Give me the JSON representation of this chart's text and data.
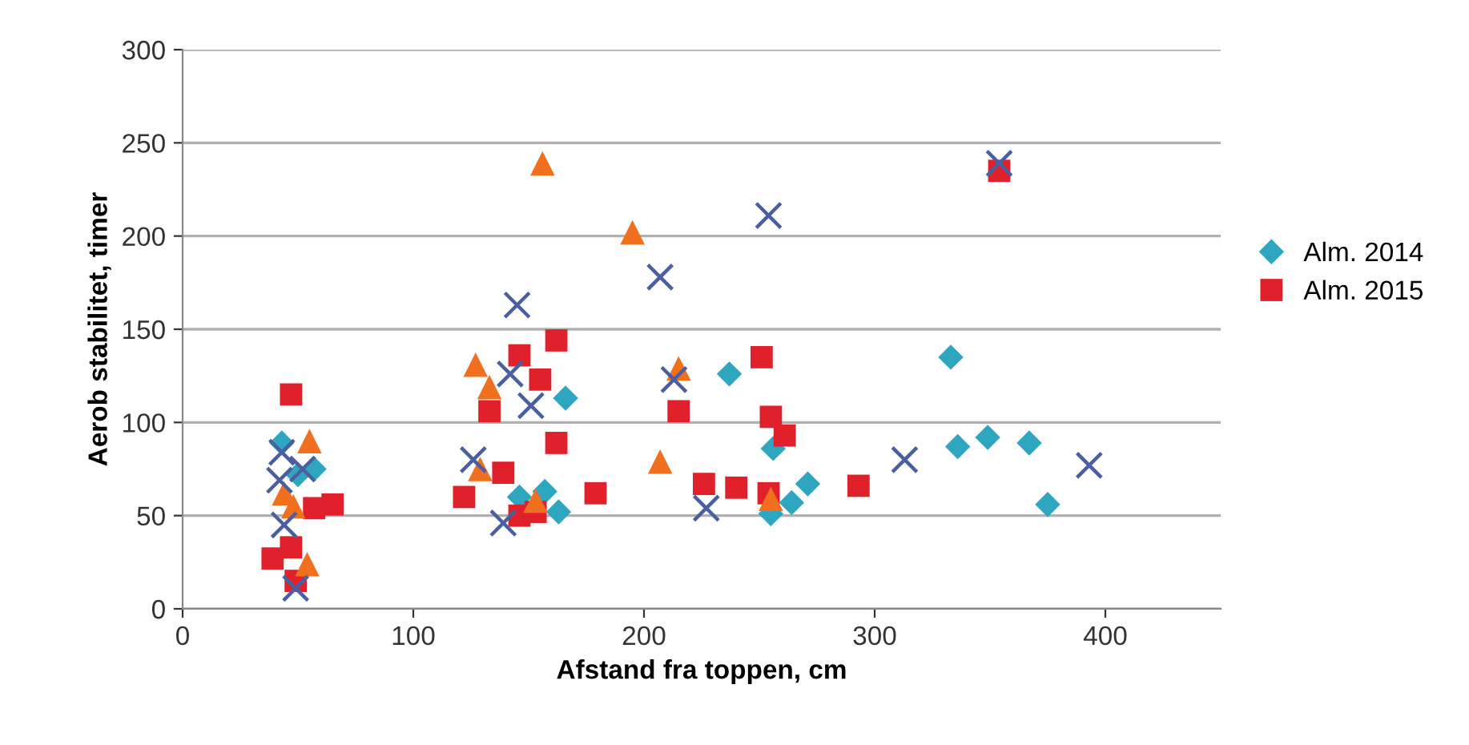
{
  "chart_data": {
    "type": "scatter",
    "xlabel": "Afstand fra toppen, cm",
    "ylabel": "Aerob stabilitet, timer",
    "xlim": [
      0,
      450
    ],
    "xticks": [
      0,
      100,
      200,
      300,
      400
    ],
    "ylim": [
      0,
      300
    ],
    "yticks": [
      0,
      50,
      100,
      150,
      200,
      250,
      300
    ],
    "grid": "y",
    "legend": "right",
    "series": [
      {
        "name": "Alm. 2014",
        "color": "#2ea6c0",
        "marker": "diamond",
        "x": [
          43,
          57,
          50,
          166,
          163,
          146,
          157,
          237,
          256,
          255,
          264,
          271,
          333,
          336,
          349,
          367,
          375
        ],
        "values": [
          89,
          75,
          72,
          113,
          52,
          60,
          63,
          126,
          86,
          51,
          57,
          67,
          135,
          87,
          92,
          89,
          56
        ]
      },
      {
        "name": "Alm. 2015",
        "color": "#e0202a",
        "marker": "square",
        "x": [
          47,
          65,
          57,
          39,
          47,
          49,
          122,
          133,
          146,
          155,
          162,
          162,
          139,
          146,
          153,
          179,
          215,
          251,
          255,
          261,
          226,
          240,
          254,
          293,
          354
        ],
        "values": [
          115,
          56,
          54,
          27,
          33,
          15,
          60,
          106,
          136,
          123,
          144,
          89,
          73,
          50,
          52,
          62,
          106,
          135,
          103,
          93,
          67,
          65,
          62,
          66,
          235
        ]
      },
      {
        "color": "#f07020",
        "marker": "triangle",
        "x": [
          55,
          44,
          48,
          54,
          156,
          195,
          127,
          133,
          129,
          153,
          207,
          215,
          255
        ],
        "values": [
          90,
          62,
          55,
          24,
          239,
          202,
          131,
          119,
          75,
          58,
          79,
          129,
          59
        ]
      },
      {
        "color": "#4a5fa0",
        "marker": "cross",
        "x": [
          43,
          42,
          44,
          49,
          52,
          145,
          142,
          151,
          126,
          139,
          207,
          213,
          254,
          227,
          313,
          393,
          354
        ],
        "values": [
          84,
          69,
          45,
          11,
          75,
          163,
          126,
          109,
          80,
          46,
          178,
          123,
          211,
          54,
          80,
          77,
          239
        ]
      }
    ]
  }
}
